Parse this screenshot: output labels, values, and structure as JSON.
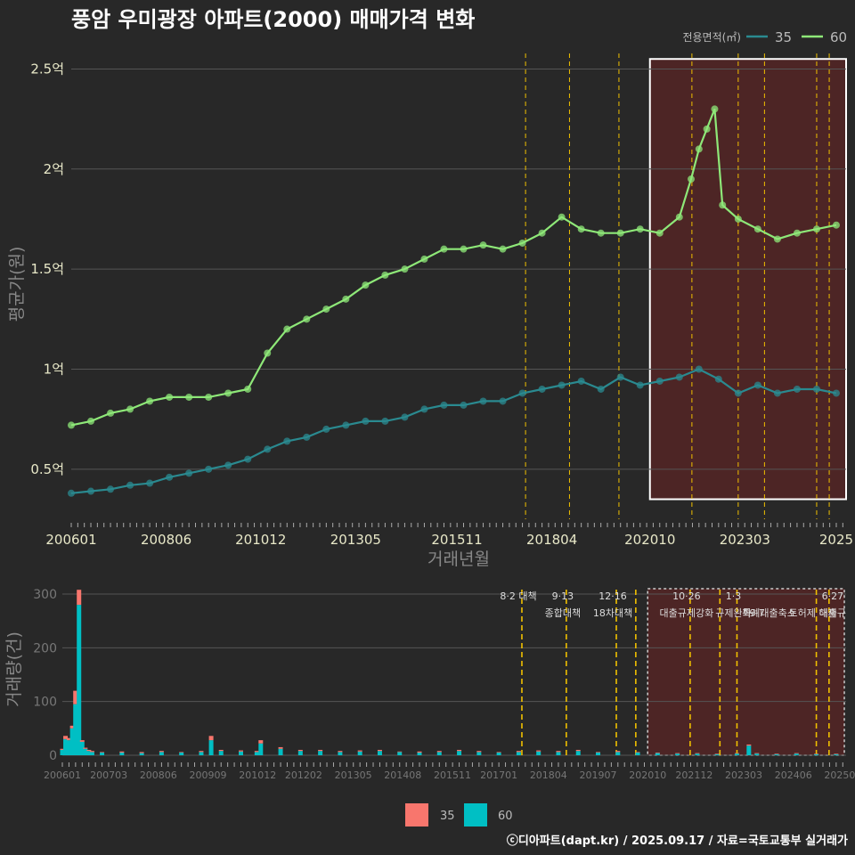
{
  "title": "풍암 우미광장 아파트(2000) 매매가격 변화",
  "legend_title": "전용면적(㎡)",
  "footer": "ⓒ디아파트(dapt.kr) / 2025.09.17 / 자료=국토교통부 실거래가",
  "colors": {
    "background": "#282828",
    "series_35": "#2a8a90",
    "series_60": "#8ee878",
    "bar_35": "#f8766d",
    "bar_60": "#00bfc4",
    "policy_line": "#f0c000",
    "highlight_fill": "#5a2424",
    "highlight_border": "#ffffff",
    "grid": "#555555",
    "axis_text": "#e8e8c8"
  },
  "chart_data": [
    {
      "type": "line",
      "xlabel": "거래년월",
      "ylabel": "평균가(원)",
      "ylim": [
        0.25,
        2.6
      ],
      "yticks": [
        {
          "value": 0.5,
          "label": "0.5억"
        },
        {
          "value": 1.0,
          "label": "1억"
        },
        {
          "value": 1.5,
          "label": "1.5억"
        },
        {
          "value": 2.0,
          "label": "2억"
        },
        {
          "value": 2.5,
          "label": "2.5억"
        }
      ],
      "xlim": [
        2006.0,
        2025.75
      ],
      "xticks": [
        {
          "value": 2006.0,
          "label": "200601"
        },
        {
          "value": 2008.42,
          "label": "200806"
        },
        {
          "value": 2010.83,
          "label": "201012"
        },
        {
          "value": 2013.25,
          "label": "201305"
        },
        {
          "value": 2015.83,
          "label": "201511"
        },
        {
          "value": 2018.25,
          "label": "201804"
        },
        {
          "value": 2020.75,
          "label": "202010"
        },
        {
          "value": 2023.17,
          "label": "202303"
        },
        {
          "value": 2025.5,
          "label": "2025"
        }
      ],
      "legend_position": "top-right",
      "highlight": {
        "x_from": 2020.75,
        "x_to": 2025.75,
        "y_from": 0.35,
        "y_to": 2.55
      },
      "policy_lines": [
        2017.58,
        2018.7,
        2019.96,
        2021.82,
        2023.0,
        2023.67,
        2025.0,
        2025.32
      ],
      "series": [
        {
          "name": "60",
          "x": [
            2006.0,
            2006.5,
            2007.0,
            2007.5,
            2008.0,
            2008.5,
            2009.0,
            2009.5,
            2010.0,
            2010.5,
            2011.0,
            2011.5,
            2012.0,
            2012.5,
            2013.0,
            2013.5,
            2014.0,
            2014.5,
            2015.0,
            2015.5,
            2016.0,
            2016.5,
            2017.0,
            2017.5,
            2018.0,
            2018.5,
            2019.0,
            2019.5,
            2020.0,
            2020.5,
            2021.0,
            2021.5,
            2021.8,
            2022.0,
            2022.2,
            2022.4,
            2022.6,
            2023.0,
            2023.5,
            2024.0,
            2024.5,
            2025.0,
            2025.5
          ],
          "values": [
            0.72,
            0.74,
            0.78,
            0.8,
            0.84,
            0.86,
            0.86,
            0.86,
            0.88,
            0.9,
            1.08,
            1.2,
            1.25,
            1.3,
            1.35,
            1.42,
            1.47,
            1.5,
            1.55,
            1.6,
            1.6,
            1.62,
            1.6,
            1.63,
            1.68,
            1.76,
            1.7,
            1.68,
            1.68,
            1.7,
            1.68,
            1.76,
            1.95,
            2.1,
            2.2,
            2.3,
            1.82,
            1.75,
            1.7,
            1.65,
            1.68,
            1.7,
            1.72
          ]
        },
        {
          "name": "35",
          "x": [
            2006.0,
            2006.5,
            2007.0,
            2007.5,
            2008.0,
            2008.5,
            2009.0,
            2009.5,
            2010.0,
            2010.5,
            2011.0,
            2011.5,
            2012.0,
            2012.5,
            2013.0,
            2013.5,
            2014.0,
            2014.5,
            2015.0,
            2015.5,
            2016.0,
            2016.5,
            2017.0,
            2017.5,
            2018.0,
            2018.5,
            2019.0,
            2019.5,
            2020.0,
            2020.5,
            2021.0,
            2021.5,
            2022.0,
            2022.5,
            2023.0,
            2023.5,
            2024.0,
            2024.5,
            2025.0,
            2025.5
          ],
          "values": [
            0.38,
            0.39,
            0.4,
            0.42,
            0.43,
            0.46,
            0.48,
            0.5,
            0.52,
            0.55,
            0.6,
            0.64,
            0.66,
            0.7,
            0.72,
            0.74,
            0.74,
            0.76,
            0.8,
            0.82,
            0.82,
            0.84,
            0.84,
            0.88,
            0.9,
            0.92,
            0.94,
            0.9,
            0.96,
            0.92,
            0.94,
            0.96,
            1.0,
            0.95,
            0.88,
            0.92,
            0.88,
            0.9,
            0.9,
            0.88
          ]
        }
      ]
    },
    {
      "type": "bar",
      "xlabel": "",
      "ylabel": "거래량(건)",
      "ylim": [
        0,
        310
      ],
      "yticks": [
        0,
        100,
        200,
        300
      ],
      "xlim": [
        2006.0,
        2025.75
      ],
      "xticks": [
        {
          "value": 2006.0,
          "label": "200601"
        },
        {
          "value": 2007.17,
          "label": "200703"
        },
        {
          "value": 2008.42,
          "label": "200806"
        },
        {
          "value": 2009.67,
          "label": "200909"
        },
        {
          "value": 2010.92,
          "label": "201012"
        },
        {
          "value": 2012.08,
          "label": "201202"
        },
        {
          "value": 2013.33,
          "label": "201305"
        },
        {
          "value": 2014.58,
          "label": "201408"
        },
        {
          "value": 2015.83,
          "label": "201511"
        },
        {
          "value": 2017.0,
          "label": "201701"
        },
        {
          "value": 2018.25,
          "label": "201804"
        },
        {
          "value": 2019.5,
          "label": "201907"
        },
        {
          "value": 2020.75,
          "label": "202010"
        },
        {
          "value": 2021.92,
          "label": "202112"
        },
        {
          "value": 2023.17,
          "label": "202303"
        },
        {
          "value": 2024.42,
          "label": "202406"
        },
        {
          "value": 2025.67,
          "label": "202509"
        }
      ],
      "highlight": {
        "x_from": 2020.75,
        "x_to": 2025.75,
        "y_from": 0,
        "y_to": 310
      },
      "policy_lines": [
        2017.58,
        2018.7,
        2019.96,
        2020.45,
        2021.82,
        2022.57,
        2023.0,
        2025.0,
        2025.32
      ],
      "policy_labels": [
        {
          "x": 2017.58,
          "line1": "8·2 대책",
          "line2": ""
        },
        {
          "x": 2018.7,
          "line1": "9·13",
          "line2": "종합대책"
        },
        {
          "x": 2019.96,
          "line1": "12·16",
          "line2": "18차대책"
        },
        {
          "x": 2021.82,
          "line1": "10·26",
          "line2": "대출규제강화"
        },
        {
          "x": 2023.0,
          "line1": "1·3",
          "line2": "규제완화"
        },
        {
          "x": 2023.6,
          "line1": "",
          "line2": "9·7"
        },
        {
          "x": 2023.9,
          "line1": "",
          "line2": "특례대출축소"
        },
        {
          "x": 2025.0,
          "line1": "",
          "line2": "토허제 해제"
        },
        {
          "x": 2025.5,
          "line1": "6·27",
          "line2": "대출규"
        }
      ],
      "series": [
        {
          "name": "60",
          "x": [
            2006.0,
            2006.08,
            2006.17,
            2006.25,
            2006.33,
            2006.42,
            2006.5,
            2006.58,
            2006.67,
            2006.75,
            2007.0,
            2007.5,
            2008.0,
            2008.5,
            2009.0,
            2009.5,
            2009.75,
            2010.0,
            2010.5,
            2010.9,
            2011.0,
            2011.5,
            2012.0,
            2012.5,
            2013.0,
            2013.5,
            2014.0,
            2014.5,
            2015.0,
            2015.5,
            2016.0,
            2016.5,
            2017.0,
            2017.5,
            2018.0,
            2018.5,
            2019.0,
            2019.5,
            2020.0,
            2020.5,
            2021.0,
            2021.5,
            2022.0,
            2022.5,
            2023.0,
            2023.3,
            2023.5,
            2024.0,
            2024.5,
            2025.0,
            2025.5
          ],
          "values": [
            10,
            30,
            28,
            50,
            95,
            280,
            25,
            12,
            8,
            6,
            5,
            5,
            4,
            6,
            5,
            6,
            28,
            8,
            7,
            6,
            22,
            12,
            8,
            8,
            6,
            7,
            8,
            6,
            5,
            6,
            8,
            6,
            5,
            6,
            7,
            6,
            8,
            5,
            6,
            5,
            4,
            3,
            3,
            2,
            3,
            18,
            3,
            2,
            3,
            2,
            2
          ]
        },
        {
          "name": "35",
          "x": [
            2006.0,
            2006.08,
            2006.17,
            2006.25,
            2006.33,
            2006.42,
            2006.5,
            2006.58,
            2006.67,
            2006.75,
            2007.0,
            2007.5,
            2008.0,
            2008.5,
            2009.0,
            2009.5,
            2009.75,
            2010.0,
            2010.5,
            2010.9,
            2011.0,
            2011.5,
            2012.0,
            2012.5,
            2013.0,
            2013.5,
            2014.0,
            2014.5,
            2015.0,
            2015.5,
            2016.0,
            2016.5,
            2017.0,
            2017.5,
            2018.0,
            2018.5,
            2019.0,
            2019.5,
            2020.0,
            2020.5,
            2021.0,
            2021.5,
            2022.0,
            2022.5,
            2023.0,
            2023.3,
            2023.5,
            2024.0,
            2024.5,
            2025.0,
            2025.5
          ],
          "values": [
            2,
            6,
            4,
            5,
            25,
            28,
            3,
            2,
            2,
            2,
            1,
            2,
            2,
            2,
            1,
            2,
            8,
            2,
            2,
            2,
            6,
            3,
            2,
            2,
            2,
            2,
            2,
            1,
            2,
            2,
            2,
            2,
            1,
            2,
            2,
            2,
            2,
            1,
            2,
            1,
            1,
            1,
            1,
            1,
            1,
            2,
            1,
            1,
            1,
            1,
            1
          ]
        }
      ]
    }
  ]
}
